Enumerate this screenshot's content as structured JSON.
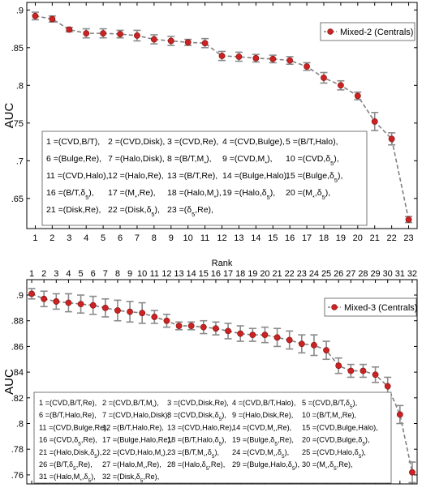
{
  "chart_data": [
    {
      "type": "line",
      "panel": "top",
      "xlabel": "",
      "ylabel": "AUC",
      "xlim": [
        0.5,
        23.5
      ],
      "ylim": [
        0.61,
        0.91
      ],
      "x_ticks": [
        1,
        2,
        3,
        4,
        5,
        6,
        7,
        8,
        9,
        10,
        11,
        12,
        13,
        14,
        15,
        16,
        17,
        18,
        19,
        20,
        21,
        22,
        23
      ],
      "y_ticks": [
        0.65,
        0.7,
        0.75,
        0.8,
        0.85,
        0.9
      ],
      "legend_position": "top-right",
      "series": [
        {
          "name": "Mixed-2 (Centrals)",
          "color": "#cc2222",
          "line_color": "#808080",
          "x": [
            1,
            2,
            3,
            4,
            5,
            6,
            7,
            8,
            9,
            10,
            11,
            12,
            13,
            14,
            15,
            16,
            17,
            18,
            19,
            20,
            21,
            22,
            23
          ],
          "values": [
            0.892,
            0.888,
            0.874,
            0.869,
            0.869,
            0.868,
            0.866,
            0.861,
            0.859,
            0.857,
            0.856,
            0.839,
            0.838,
            0.836,
            0.835,
            0.833,
            0.825,
            0.81,
            0.8,
            0.786,
            0.752,
            0.729,
            0.622
          ],
          "errors": [
            0.005,
            0.004,
            0.003,
            0.006,
            0.006,
            0.005,
            0.007,
            0.006,
            0.006,
            0.004,
            0.006,
            0.006,
            0.006,
            0.005,
            0.005,
            0.005,
            0.005,
            0.007,
            0.006,
            0.005,
            0.012,
            0.008,
            0.004
          ]
        }
      ],
      "annotation_lines": [
        [
          "1 =(CVD,B/T),",
          "2 =(CVD,Disk),",
          "3 =(CVD,Re),",
          "4 =(CVD,Bulge),",
          "5 =(B/T,Halo),"
        ],
        [
          "6 =(Bulge,Re),",
          "7 =(Halo,Disk),",
          "8 =(B/T,M*),",
          "9 =(CVD,M*),",
          "10 =(CVD,δ5),"
        ],
        [
          "11 =(CVD,Halo),",
          "12 =(Halo,Re),",
          "13 =(B/T,Re),",
          "14 =(Bulge,Halo),",
          "15 =(Bulge,δ5),"
        ],
        [
          "16 =(B/T,δ5),",
          "17 =(M*,Re),",
          "18 =(Halo,M*),",
          "19 =(Halo,δ5),",
          "20 =(M*,δ5),"
        ],
        [
          "21 =(Disk,Re),",
          "22 =(Disk,δ5),",
          "23 =(δ5,Re),"
        ]
      ]
    },
    {
      "type": "line",
      "panel": "bottom",
      "xlabel": "Rank",
      "ylabel": "AUC",
      "xlim": [
        0.6,
        32.4
      ],
      "ylim": [
        0.753,
        0.912
      ],
      "x_ticks": [
        1,
        2,
        3,
        4,
        5,
        6,
        7,
        8,
        9,
        10,
        11,
        12,
        13,
        14,
        15,
        16,
        17,
        18,
        19,
        20,
        21,
        22,
        23,
        24,
        25,
        26,
        27,
        28,
        29,
        30,
        31,
        32
      ],
      "y_ticks": [
        0.76,
        0.78,
        0.8,
        0.82,
        0.84,
        0.86,
        0.88,
        0.9
      ],
      "legend_position": "top-right",
      "series": [
        {
          "name": "Mixed-3 (Centrals)",
          "color": "#cc2222",
          "line_color": "#808080",
          "x": [
            1,
            2,
            3,
            4,
            5,
            6,
            7,
            8,
            9,
            10,
            11,
            12,
            13,
            14,
            15,
            16,
            17,
            18,
            19,
            20,
            21,
            22,
            23,
            24,
            25,
            26,
            27,
            28,
            29,
            30,
            31,
            32
          ],
          "values": [
            0.901,
            0.897,
            0.895,
            0.894,
            0.893,
            0.892,
            0.89,
            0.888,
            0.887,
            0.886,
            0.883,
            0.88,
            0.876,
            0.876,
            0.875,
            0.874,
            0.872,
            0.87,
            0.869,
            0.869,
            0.867,
            0.865,
            0.862,
            0.861,
            0.857,
            0.845,
            0.841,
            0.841,
            0.838,
            0.829,
            0.807,
            0.762
          ],
          "errors": [
            0.004,
            0.006,
            0.006,
            0.007,
            0.007,
            0.007,
            0.007,
            0.008,
            0.008,
            0.008,
            0.005,
            0.005,
            0.003,
            0.003,
            0.005,
            0.005,
            0.006,
            0.006,
            0.005,
            0.006,
            0.007,
            0.007,
            0.007,
            0.008,
            0.007,
            0.006,
            0.005,
            0.005,
            0.006,
            0.007,
            0.007,
            0.008
          ]
        }
      ],
      "annotation_lines": [
        [
          "1 =(CVD,B/T,Re),",
          "2 =(CVD,B/T,M*),",
          "3 =(CVD,Disk,Re),",
          "4 =(CVD,B/T,Halo),",
          "5 =(CVD,B/T,δ5),"
        ],
        [
          "6 =(B/T,Halo,Re),",
          "7 =(CVD,Halo,Disk),",
          "8 =(CVD,Disk,δ5),",
          "9 =(Halo,Disk,Re),",
          "10 =(B/T,M*,Re),"
        ],
        [
          "11 =(CVD,Bulge,Re),",
          "12 =(B/T,Halo,Re),",
          "13 =(CVD,Halo,Re),",
          "14 =(CVD,M*,Re),",
          "15 =(CVD,Bulge,Halo),"
        ],
        [
          "16 =(CVD,δ5,Re),",
          "17 =(Bulge,Halo,Re),",
          "18 =(B/T,Halo,δ5),",
          "19 =(Bulge,δ5,Re),",
          "20 =(CVD,Bulge,δ5),"
        ],
        [
          "21 =(Halo,Disk,δ5),",
          "22 =(CVD,Halo,M*),",
          "23 =(B/T,M*,δ5),",
          "24 =(CVD,M*,δ5),",
          "25 =(CVD,Halo,δ5),"
        ],
        [
          "26 =(B/T,δ5,Re),",
          "27 =(Halo,M*,Re),",
          "28 =(Halo,δ5,Re),",
          "29 =(Bulge,Halo,δ5),",
          "30 =(M*,δ5,Re),"
        ],
        [
          "31 =(Halo,M*,δ5),",
          "32 =(Disk,δ5,Re),"
        ]
      ]
    }
  ]
}
